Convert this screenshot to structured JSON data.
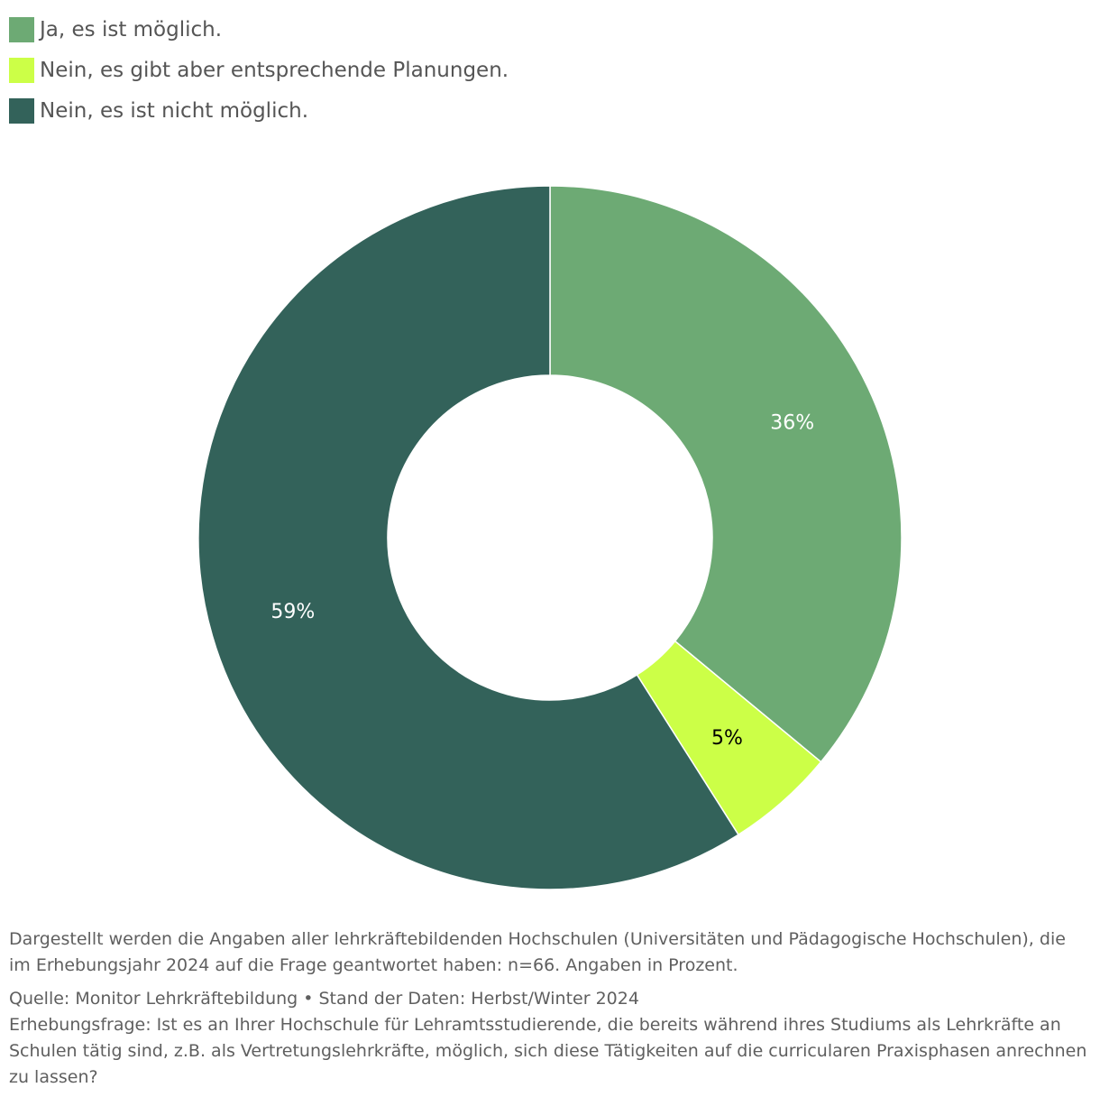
{
  "chart_data": {
    "type": "pie",
    "variant": "donut",
    "categories": [
      "Ja, es ist möglich.",
      "Nein, es gibt aber entsprechende Planungen.",
      "Nein, es ist nicht möglich."
    ],
    "values": [
      36,
      5,
      59
    ],
    "value_labels": [
      "36%",
      "5%",
      "59%"
    ],
    "colors": [
      "#6daa74",
      "#ccff47",
      "#33625a"
    ],
    "label_colors": [
      "#ffffff",
      "#000000",
      "#ffffff"
    ],
    "legend_position": "top-left"
  },
  "notes": {
    "description": "Dargestellt werden die Angaben aller lehrkräftebildenden Hochschulen (Universitäten und Pädagogische Hochschulen), die im Erhebungsjahr 2024 auf die Frage geantwortet haben: n=66. Angaben in Prozent.",
    "source": "Quelle: Monitor Lehrkräftebildung • Stand der Daten: Herbst/Winter 2024",
    "question": "Erhebungsfrage: Ist es an Ihrer Hochschule für Lehramtsstudierende, die bereits während ihres Studiums als Lehrkräfte an Schulen tätig sind, z.B. als Vertretungslehrkräfte, möglich, sich diese Tätigkeiten auf die curricularen Praxisphasen anrechnen zu lassen?"
  }
}
